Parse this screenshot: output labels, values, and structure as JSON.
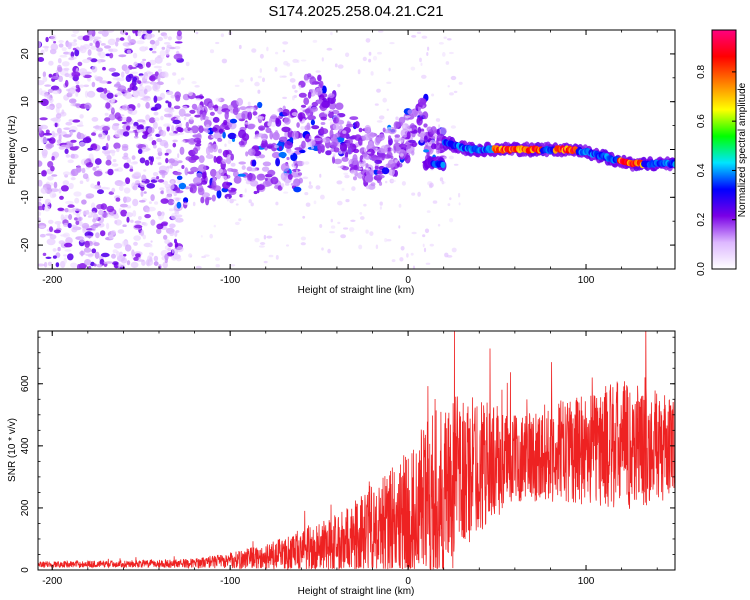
{
  "title": "S174.2025.258.04.21.C21",
  "chart_data": [
    {
      "type": "heatmap",
      "xlabel": "Height of straight line (km)",
      "ylabel": "Frequency (Hz)",
      "xlim": [
        -208,
        150
      ],
      "ylim": [
        -25,
        25
      ],
      "xticks": [
        -200,
        -100,
        0,
        100
      ],
      "xtick_labels": [
        "-200",
        "-100",
        "0",
        "100"
      ],
      "yticks": [
        -20,
        -10,
        0,
        10,
        20
      ],
      "ytick_labels": [
        "-20",
        "-10",
        "0",
        "10",
        "20"
      ],
      "colorbar": {
        "label": "Normalized spectral amplitude",
        "range": [
          0,
          0.97
        ],
        "ticks": [
          0.0,
          0.2,
          0.4,
          0.6,
          0.8
        ],
        "tick_labels": [
          "0.0",
          "0.2",
          "0.4",
          "0.6",
          "0.8"
        ],
        "stops": [
          "#ffffff",
          "#ddb8ff",
          "#7a00e6",
          "#0000ff",
          "#00e5ff",
          "#00ff00",
          "#ffff00",
          "#ff8000",
          "#ff0000",
          "#ff0080"
        ]
      },
      "ridge": {
        "description": "Strong carrier ridge visible for heights above ~20 km",
        "points": [
          {
            "x": 20,
            "y": 1.5
          },
          {
            "x": 35,
            "y": 0
          },
          {
            "x": 50,
            "y": 0
          },
          {
            "x": 60,
            "y": 0
          },
          {
            "x": 75,
            "y": 0
          },
          {
            "x": 90,
            "y": 0
          },
          {
            "x": 100,
            "y": -0.5
          },
          {
            "x": 110,
            "y": -1.5
          },
          {
            "x": 125,
            "y": -3
          },
          {
            "x": 140,
            "y": -3
          },
          {
            "x": 150,
            "y": -3
          }
        ]
      }
    },
    {
      "type": "line",
      "series": [
        {
          "name": "SNR",
          "color": "#ee2222"
        }
      ],
      "xlabel": "Height of straight line (km)",
      "ylabel": "SNR (10 * v/v)",
      "xlim": [
        -208,
        150
      ],
      "ylim": [
        0,
        770
      ],
      "xticks": [
        -200,
        -100,
        0,
        100
      ],
      "xtick_labels": [
        "-200",
        "-100",
        "0",
        "100"
      ],
      "yticks": [
        0,
        200,
        400,
        600
      ],
      "ytick_labels": [
        "0",
        "200",
        "400",
        "600"
      ],
      "envelope": [
        {
          "x": -208,
          "mean": 18,
          "spread": 10
        },
        {
          "x": -150,
          "mean": 20,
          "spread": 12
        },
        {
          "x": -120,
          "mean": 22,
          "spread": 15
        },
        {
          "x": -100,
          "mean": 30,
          "spread": 25
        },
        {
          "x": -80,
          "mean": 40,
          "spread": 45
        },
        {
          "x": -60,
          "mean": 55,
          "spread": 70
        },
        {
          "x": -40,
          "mean": 80,
          "spread": 100
        },
        {
          "x": -20,
          "mean": 130,
          "spread": 150
        },
        {
          "x": 0,
          "mean": 180,
          "spread": 210
        },
        {
          "x": 20,
          "mean": 260,
          "spread": 300
        },
        {
          "x": 40,
          "mean": 340,
          "spread": 220
        },
        {
          "x": 60,
          "mean": 360,
          "spread": 140
        },
        {
          "x": 80,
          "mean": 380,
          "spread": 160
        },
        {
          "x": 100,
          "mean": 390,
          "spread": 180
        },
        {
          "x": 120,
          "mean": 400,
          "spread": 220
        },
        {
          "x": 150,
          "mean": 390,
          "spread": 160
        }
      ]
    }
  ]
}
